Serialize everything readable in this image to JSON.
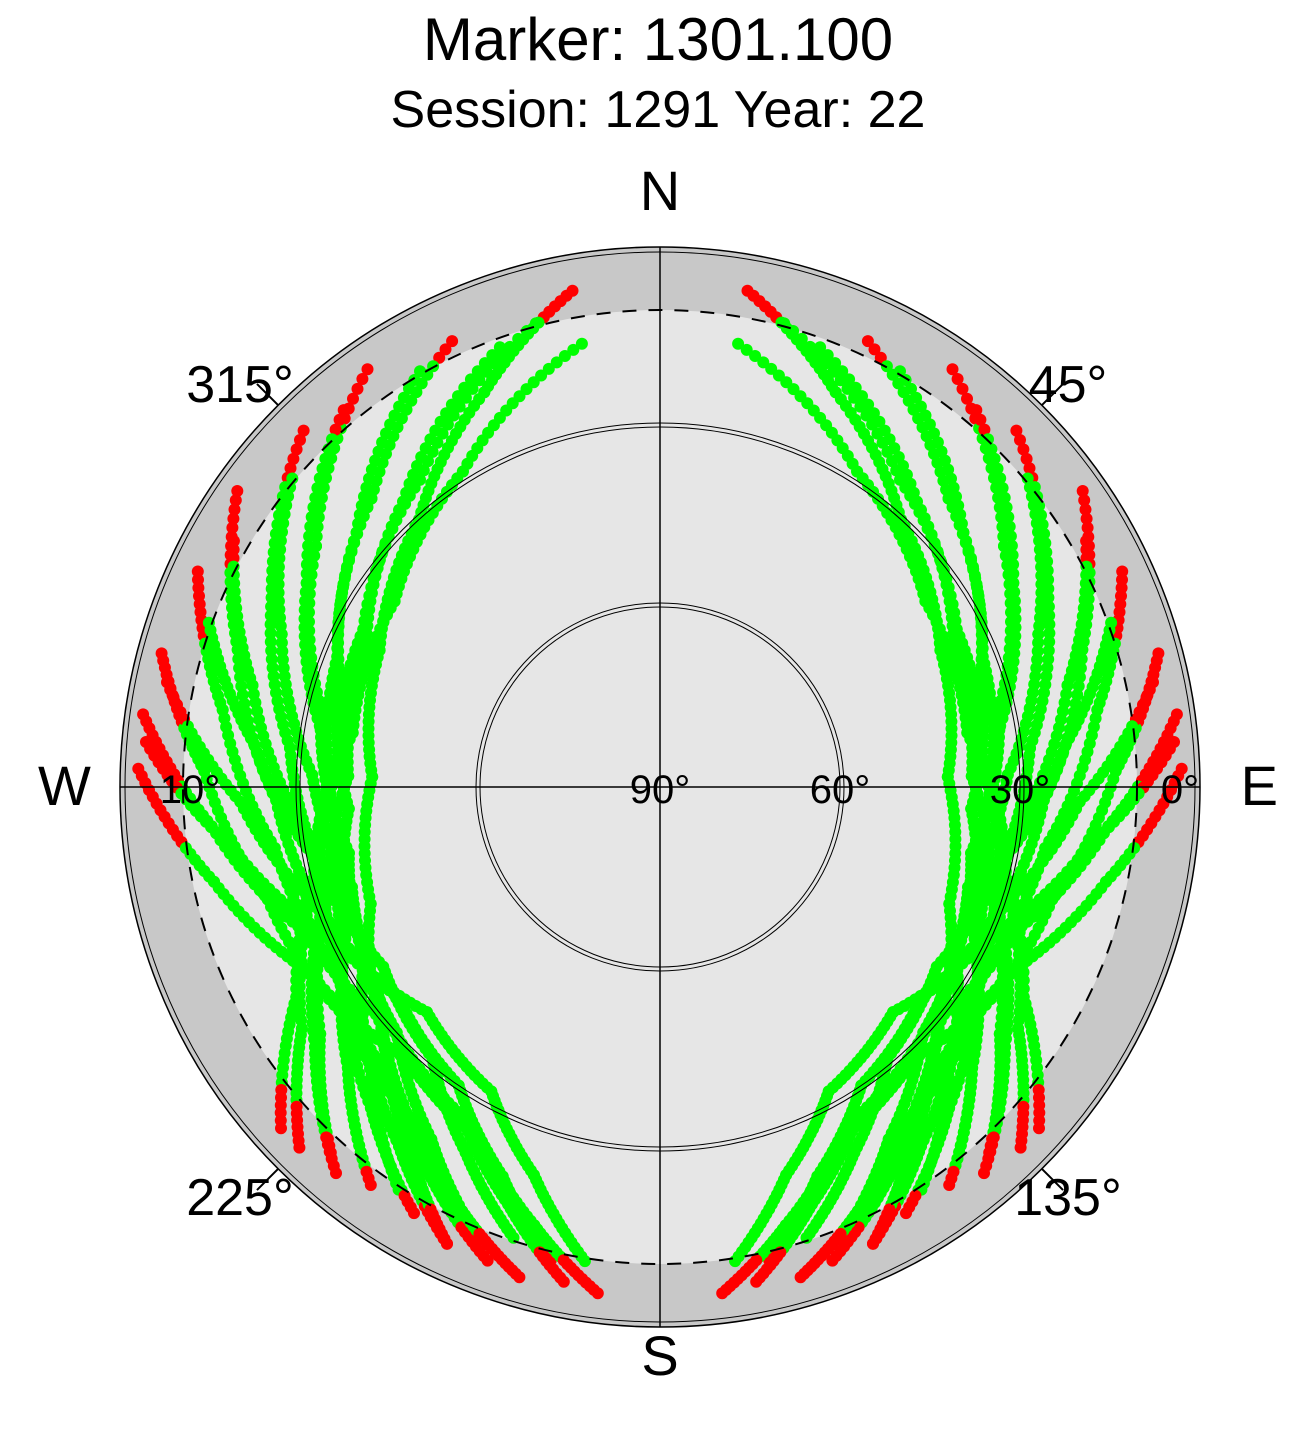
{
  "title": "Marker: 1301.100",
  "subtitle": "Session: 1291 Year: 22",
  "chart_data": {
    "type": "scatter",
    "projection": "polar-skyplot",
    "compass": {
      "north": "N",
      "south": "S",
      "east": "E",
      "west": "W"
    },
    "azimuth_labels": [
      {
        "azimuth": 45,
        "text": "45°"
      },
      {
        "azimuth": 135,
        "text": "135°"
      },
      {
        "azimuth": 225,
        "text": "225°"
      },
      {
        "azimuth": 315,
        "text": "315°"
      }
    ],
    "elevation_labels": [
      {
        "elevation": 0,
        "text": "0°"
      },
      {
        "elevation": 30,
        "text": "30°"
      },
      {
        "elevation": 60,
        "text": "60°"
      },
      {
        "elevation": 90,
        "text": "90°"
      },
      {
        "elevation": 10,
        "text": "10°"
      }
    ],
    "elevation_circles": [
      30,
      60
    ],
    "elevation_mask_deg": 10,
    "visibility_limit_deg": 5,
    "colors": {
      "tracked": "#00ff00",
      "low_elevation": "#ff0000",
      "outer_band": "#c8c8c8",
      "inner_sky": "#e6e6e6",
      "grid": "#000000"
    },
    "series": [],
    "tracks": [
      {
        "pts": [
          [
            350,
            15
          ],
          [
            328,
            28
          ],
          [
            305,
            36
          ],
          [
            280,
            38
          ],
          [
            258,
            32
          ],
          [
            240,
            20
          ],
          [
            228,
            5
          ]
        ]
      },
      {
        "pts": [
          [
            345,
            10
          ],
          [
            322,
            25
          ],
          [
            298,
            34
          ],
          [
            275,
            36
          ],
          [
            254,
            30
          ],
          [
            236,
            18
          ],
          [
            225,
            5
          ]
        ]
      },
      {
        "pts": [
          [
            340,
            12
          ],
          [
            318,
            26
          ],
          [
            295,
            36
          ],
          [
            272,
            38
          ],
          [
            252,
            32
          ],
          [
            234,
            20
          ],
          [
            222,
            8
          ]
        ]
      },
      {
        "pts": [
          [
            335,
            8
          ],
          [
            315,
            22
          ],
          [
            292,
            32
          ],
          [
            270,
            35
          ],
          [
            250,
            30
          ],
          [
            233,
            18
          ],
          [
            220,
            6
          ]
        ]
      },
      {
        "pts": [
          [
            330,
            10
          ],
          [
            310,
            24
          ],
          [
            288,
            34
          ],
          [
            266,
            38
          ],
          [
            246,
            33
          ],
          [
            230,
            22
          ],
          [
            218,
            10
          ]
        ]
      },
      {
        "pts": [
          [
            325,
            5
          ],
          [
            305,
            20
          ],
          [
            283,
            32
          ],
          [
            262,
            36
          ],
          [
            243,
            31
          ],
          [
            228,
            20
          ],
          [
            216,
            8
          ]
        ]
      },
      {
        "pts": [
          [
            320,
            8
          ],
          [
            300,
            22
          ],
          [
            279,
            33
          ],
          [
            258,
            37
          ],
          [
            240,
            33
          ],
          [
            225,
            22
          ],
          [
            213,
            10
          ]
        ]
      },
      {
        "pts": [
          [
            315,
            6
          ],
          [
            296,
            18
          ],
          [
            276,
            28
          ],
          [
            256,
            32
          ],
          [
            238,
            28
          ],
          [
            222,
            18
          ],
          [
            210,
            8
          ]
        ]
      },
      {
        "pts": [
          [
            310,
            10
          ],
          [
            292,
            22
          ],
          [
            272,
            32
          ],
          [
            252,
            36
          ],
          [
            234,
            32
          ],
          [
            219,
            22
          ],
          [
            207,
            12
          ]
        ]
      },
      {
        "pts": [
          [
            305,
            4
          ],
          [
            288,
            16
          ],
          [
            268,
            26
          ],
          [
            248,
            30
          ],
          [
            230,
            26
          ],
          [
            216,
            16
          ],
          [
            205,
            6
          ]
        ]
      },
      {
        "pts": [
          [
            300,
            8
          ],
          [
            284,
            20
          ],
          [
            264,
            30
          ],
          [
            244,
            34
          ],
          [
            227,
            30
          ],
          [
            213,
            20
          ],
          [
            202,
            9
          ]
        ]
      },
      {
        "pts": [
          [
            295,
            5
          ],
          [
            280,
            16
          ],
          [
            261,
            25
          ],
          [
            241,
            28
          ],
          [
            224,
            24
          ],
          [
            211,
            15
          ],
          [
            200,
            6
          ]
        ]
      },
      {
        "pts": [
          [
            290,
            10
          ],
          [
            276,
            22
          ],
          [
            257,
            32
          ],
          [
            237,
            35
          ],
          [
            220,
            31
          ],
          [
            208,
            21
          ],
          [
            198,
            11
          ]
        ]
      },
      {
        "pts": [
          [
            285,
            4
          ],
          [
            272,
            14
          ],
          [
            254,
            22
          ],
          [
            234,
            25
          ],
          [
            217,
            21
          ],
          [
            205,
            12
          ],
          [
            196,
            5
          ]
        ]
      },
      {
        "pts": [
          [
            282,
            6
          ],
          [
            268,
            20
          ],
          [
            250,
            30
          ],
          [
            231,
            34
          ],
          [
            214,
            30
          ],
          [
            202,
            20
          ],
          [
            193,
            9
          ]
        ]
      },
      {
        "pts": [
          [
            278,
            3
          ],
          [
            265,
            15
          ],
          [
            248,
            26
          ],
          [
            228,
            30
          ],
          [
            211,
            26
          ],
          [
            200,
            16
          ],
          [
            191,
            6
          ]
        ]
      },
      {
        "pts": [
          [
            275,
            4
          ],
          [
            262,
            18
          ],
          [
            245,
            30
          ],
          [
            226,
            36
          ],
          [
            209,
            32
          ],
          [
            198,
            22
          ],
          [
            189,
            10
          ]
        ]
      },
      {
        "pts": [
          [
            272,
            3
          ],
          [
            258,
            14
          ],
          [
            242,
            24
          ],
          [
            223,
            28
          ],
          [
            207,
            24
          ],
          [
            196,
            14
          ],
          [
            187,
            5
          ]
        ]
      },
      {
        "pts": [
          [
            350,
            6
          ],
          [
            336,
            18
          ],
          [
            318,
            30
          ],
          [
            296,
            38
          ],
          [
            272,
            42
          ],
          [
            248,
            38
          ],
          [
            228,
            28
          ],
          [
            214,
            16
          ],
          [
            205,
            6
          ]
        ]
      },
      {
        "pts": [
          [
            10,
            15
          ],
          [
            32,
            28
          ],
          [
            55,
            36
          ],
          [
            80,
            38
          ],
          [
            102,
            32
          ],
          [
            120,
            20
          ],
          [
            132,
            5
          ]
        ]
      },
      {
        "pts": [
          [
            15,
            10
          ],
          [
            38,
            25
          ],
          [
            62,
            34
          ],
          [
            85,
            36
          ],
          [
            106,
            30
          ],
          [
            124,
            18
          ],
          [
            135,
            5
          ]
        ]
      },
      {
        "pts": [
          [
            20,
            12
          ],
          [
            42,
            26
          ],
          [
            65,
            36
          ],
          [
            88,
            38
          ],
          [
            108,
            32
          ],
          [
            126,
            20
          ],
          [
            138,
            8
          ]
        ]
      },
      {
        "pts": [
          [
            25,
            8
          ],
          [
            45,
            22
          ],
          [
            68,
            32
          ],
          [
            90,
            35
          ],
          [
            110,
            30
          ],
          [
            127,
            18
          ],
          [
            140,
            6
          ]
        ]
      },
      {
        "pts": [
          [
            30,
            10
          ],
          [
            50,
            24
          ],
          [
            72,
            34
          ],
          [
            94,
            38
          ],
          [
            114,
            33
          ],
          [
            130,
            22
          ],
          [
            142,
            10
          ]
        ]
      },
      {
        "pts": [
          [
            35,
            5
          ],
          [
            55,
            20
          ],
          [
            77,
            32
          ],
          [
            98,
            36
          ],
          [
            117,
            31
          ],
          [
            132,
            20
          ],
          [
            144,
            8
          ]
        ]
      },
      {
        "pts": [
          [
            40,
            8
          ],
          [
            60,
            22
          ],
          [
            81,
            33
          ],
          [
            102,
            37
          ],
          [
            120,
            33
          ],
          [
            135,
            22
          ],
          [
            147,
            10
          ]
        ]
      },
      {
        "pts": [
          [
            45,
            6
          ],
          [
            64,
            18
          ],
          [
            84,
            28
          ],
          [
            104,
            32
          ],
          [
            122,
            28
          ],
          [
            138,
            18
          ],
          [
            150,
            8
          ]
        ]
      },
      {
        "pts": [
          [
            50,
            10
          ],
          [
            68,
            22
          ],
          [
            88,
            32
          ],
          [
            108,
            36
          ],
          [
            126,
            32
          ],
          [
            141,
            22
          ],
          [
            153,
            12
          ]
        ]
      },
      {
        "pts": [
          [
            55,
            4
          ],
          [
            72,
            16
          ],
          [
            92,
            26
          ],
          [
            112,
            30
          ],
          [
            130,
            26
          ],
          [
            144,
            16
          ],
          [
            155,
            6
          ]
        ]
      },
      {
        "pts": [
          [
            60,
            8
          ],
          [
            76,
            20
          ],
          [
            96,
            30
          ],
          [
            116,
            34
          ],
          [
            133,
            30
          ],
          [
            147,
            20
          ],
          [
            158,
            9
          ]
        ]
      },
      {
        "pts": [
          [
            65,
            5
          ],
          [
            80,
            16
          ],
          [
            99,
            25
          ],
          [
            119,
            28
          ],
          [
            136,
            24
          ],
          [
            149,
            15
          ],
          [
            160,
            6
          ]
        ]
      },
      {
        "pts": [
          [
            70,
            10
          ],
          [
            84,
            22
          ],
          [
            103,
            32
          ],
          [
            123,
            35
          ],
          [
            140,
            31
          ],
          [
            152,
            21
          ],
          [
            162,
            11
          ]
        ]
      },
      {
        "pts": [
          [
            75,
            4
          ],
          [
            88,
            14
          ],
          [
            106,
            22
          ],
          [
            126,
            25
          ],
          [
            143,
            21
          ],
          [
            155,
            12
          ],
          [
            164,
            5
          ]
        ]
      },
      {
        "pts": [
          [
            78,
            6
          ],
          [
            92,
            20
          ],
          [
            110,
            30
          ],
          [
            129,
            34
          ],
          [
            146,
            30
          ],
          [
            158,
            20
          ],
          [
            167,
            9
          ]
        ]
      },
      {
        "pts": [
          [
            82,
            3
          ],
          [
            95,
            15
          ],
          [
            112,
            26
          ],
          [
            132,
            30
          ],
          [
            149,
            26
          ],
          [
            160,
            16
          ],
          [
            169,
            6
          ]
        ]
      },
      {
        "pts": [
          [
            85,
            4
          ],
          [
            98,
            18
          ],
          [
            115,
            30
          ],
          [
            134,
            36
          ],
          [
            151,
            32
          ],
          [
            162,
            22
          ],
          [
            171,
            10
          ]
        ]
      },
      {
        "pts": [
          [
            88,
            3
          ],
          [
            102,
            14
          ],
          [
            118,
            24
          ],
          [
            137,
            28
          ],
          [
            153,
            24
          ],
          [
            164,
            14
          ],
          [
            173,
            5
          ]
        ]
      },
      {
        "pts": [
          [
            10,
            6
          ],
          [
            24,
            18
          ],
          [
            42,
            30
          ],
          [
            64,
            38
          ],
          [
            88,
            42
          ],
          [
            112,
            38
          ],
          [
            132,
            28
          ],
          [
            146,
            16
          ],
          [
            155,
            6
          ]
        ]
      }
    ]
  }
}
